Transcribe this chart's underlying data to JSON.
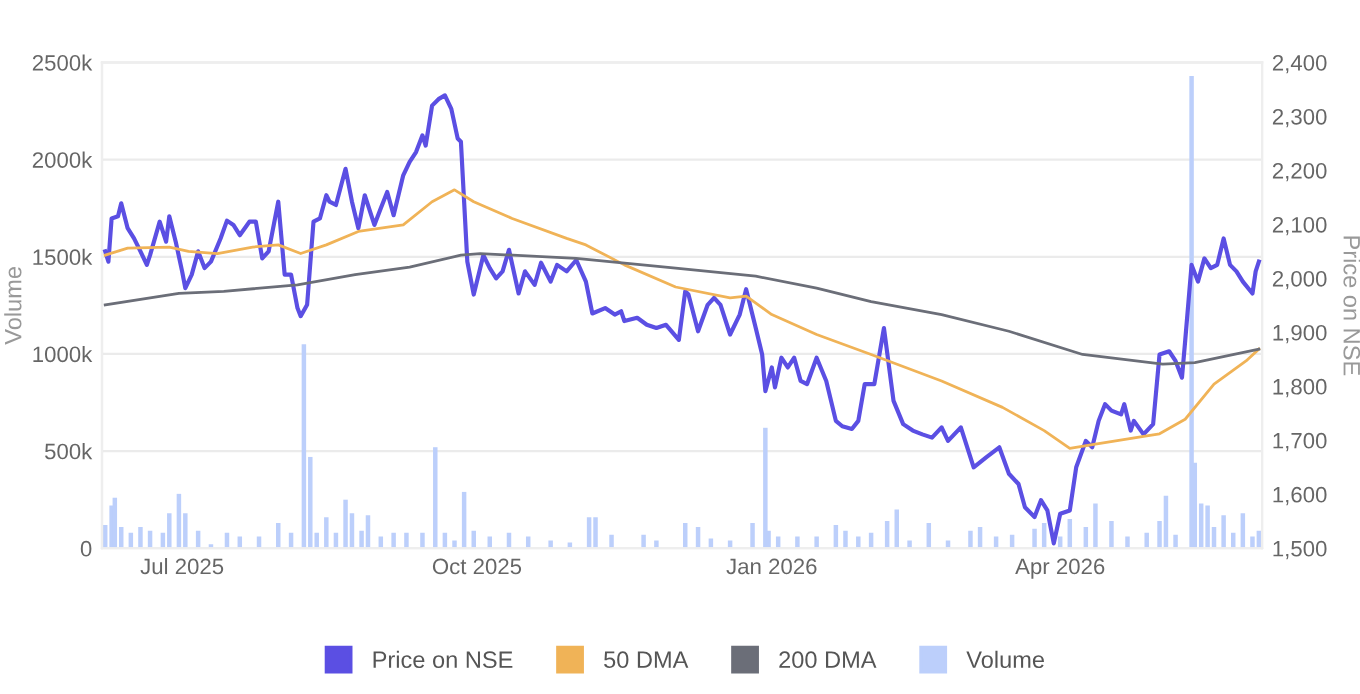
{
  "chart_data": {
    "type": "line",
    "ylabel": "Volume",
    "y2label": "Price on NSE",
    "legend": "bottom",
    "grid": "y",
    "marker": "none",
    "line_style": "solid",
    "xlim": [
      "2025-06-06",
      "2026-06-03"
    ],
    "xticks": [
      {
        "value": "2025-07-01",
        "label": "Jul 2025"
      },
      {
        "value": "2025-10-01",
        "label": "Oct 2025"
      },
      {
        "value": "2026-01-01",
        "label": "Jan 2026"
      },
      {
        "value": "2026-04-01",
        "label": "Apr 2026"
      }
    ],
    "ylim": [
      0,
      2500000
    ],
    "yticks": [
      {
        "value": 0,
        "label": "0"
      },
      {
        "value": 500000,
        "label": "500k"
      },
      {
        "value": 1000000,
        "label": "1000k"
      },
      {
        "value": 1500000,
        "label": "1500k"
      },
      {
        "value": 2000000,
        "label": "2000k"
      },
      {
        "value": 2500000,
        "label": "2500k"
      }
    ],
    "y2lim": [
      1500,
      2400
    ],
    "y2ticks": [
      {
        "value": 1500,
        "label": "1,500"
      },
      {
        "value": 1600,
        "label": "1,600"
      },
      {
        "value": 1700,
        "label": "1,700"
      },
      {
        "value": 1800,
        "label": "1,800"
      },
      {
        "value": 1900,
        "label": "1,900"
      },
      {
        "value": 2000,
        "label": "2,000"
      },
      {
        "value": 2100,
        "label": "2,100"
      },
      {
        "value": 2200,
        "label": "2,200"
      },
      {
        "value": 2300,
        "label": "2,300"
      },
      {
        "value": 2400,
        "label": "2,400"
      }
    ],
    "series": [
      {
        "name": "Price on NSE",
        "axis": "y2",
        "color": "#5b4fe3",
        "x": [
          "2025-06-07",
          "2025-06-08",
          "2025-06-09",
          "2025-06-11",
          "2025-06-12",
          "2025-06-14",
          "2025-06-16",
          "2025-06-18",
          "2025-06-20",
          "2025-06-21",
          "2025-06-24",
          "2025-06-26",
          "2025-06-27",
          "2025-06-29",
          "2025-07-01",
          "2025-07-02",
          "2025-07-04",
          "2025-07-06",
          "2025-07-08",
          "2025-07-10",
          "2025-07-13",
          "2025-07-15",
          "2025-07-17",
          "2025-07-19",
          "2025-07-22",
          "2025-07-24",
          "2025-07-26",
          "2025-07-28",
          "2025-07-31",
          "2025-08-02",
          "2025-08-04",
          "2025-08-06",
          "2025-08-07",
          "2025-08-09",
          "2025-08-11",
          "2025-08-13",
          "2025-08-15",
          "2025-08-16",
          "2025-08-18",
          "2025-08-21",
          "2025-08-23",
          "2025-08-25",
          "2025-08-27",
          "2025-08-30",
          "2025-09-01",
          "2025-09-03",
          "2025-09-05",
          "2025-09-08",
          "2025-09-10",
          "2025-09-12",
          "2025-09-14",
          "2025-09-15",
          "2025-09-17",
          "2025-09-19",
          "2025-09-21",
          "2025-09-23",
          "2025-09-25",
          "2025-09-26",
          "2025-09-28",
          "2025-09-30",
          "2025-10-03",
          "2025-10-05",
          "2025-10-07",
          "2025-10-09",
          "2025-10-11",
          "2025-10-14",
          "2025-10-16",
          "2025-10-19",
          "2025-10-21",
          "2025-10-24",
          "2025-10-26",
          "2025-10-29",
          "2025-11-01",
          "2025-11-04",
          "2025-11-06",
          "2025-11-10",
          "2025-11-13",
          "2025-11-15",
          "2025-11-16",
          "2025-11-20",
          "2025-11-23",
          "2025-11-26",
          "2025-11-29",
          "2025-12-03",
          "2025-12-05",
          "2025-12-06",
          "2025-12-09",
          "2025-12-12",
          "2025-12-14",
          "2025-12-16",
          "2025-12-19",
          "2025-12-22",
          "2025-12-24",
          "2025-12-27",
          "2025-12-29",
          "2025-12-30",
          "2026-01-01",
          "2026-01-02",
          "2026-01-04",
          "2026-01-06",
          "2026-01-08",
          "2026-01-10",
          "2026-01-12",
          "2026-01-15",
          "2026-01-18",
          "2026-01-21",
          "2026-01-23",
          "2026-01-26",
          "2026-01-28",
          "2026-01-30",
          "2026-02-02",
          "2026-02-05",
          "2026-02-08",
          "2026-02-11",
          "2026-02-14",
          "2026-02-17",
          "2026-02-20",
          "2026-02-23",
          "2026-02-25",
          "2026-03-01",
          "2026-03-05",
          "2026-03-09",
          "2026-03-13",
          "2026-03-16",
          "2026-03-19",
          "2026-03-21",
          "2026-03-24",
          "2026-03-26",
          "2026-03-28",
          "2026-03-30",
          "2026-04-01",
          "2026-04-04",
          "2026-04-06",
          "2026-04-09",
          "2026-04-11",
          "2026-04-13",
          "2026-04-15",
          "2026-04-17",
          "2026-04-20",
          "2026-04-21",
          "2026-04-23",
          "2026-04-24",
          "2026-04-27",
          "2026-04-30",
          "2026-05-02",
          "2026-05-05",
          "2026-05-07",
          "2026-05-09",
          "2026-05-10",
          "2026-05-12",
          "2026-05-14",
          "2026-05-16",
          "2026-05-18",
          "2026-05-20",
          "2026-05-22",
          "2026-05-24",
          "2026-05-26",
          "2026-05-28",
          "2026-05-31",
          "2026-06-01",
          "2026-06-02"
        ],
        "values": [
          2050,
          2031,
          2111,
          2115,
          2139,
          2093,
          2074,
          2050,
          2025,
          2043,
          2105,
          2068,
          2115,
          2068,
          2013,
          1982,
          2007,
          2050,
          2019,
          2031,
          2074,
          2107,
          2099,
          2080,
          2105,
          2105,
          2037,
          2050,
          2142,
          2007,
          2007,
          1945,
          1930,
          1951,
          2105,
          2111,
          2154,
          2142,
          2136,
          2203,
          2142,
          2093,
          2154,
          2099,
          2130,
          2160,
          2117,
          2191,
          2216,
          2234,
          2265,
          2246,
          2320,
          2332,
          2339,
          2314,
          2259,
          2253,
          2031,
          1970,
          2043,
          2019,
          2000,
          2013,
          2053,
          1972,
          2013,
          1988,
          2029,
          1994,
          2025,
          2013,
          2034,
          1994,
          1935,
          1945,
          1933,
          1939,
          1921,
          1927,
          1914,
          1908,
          1914,
          1886,
          1976,
          1970,
          1902,
          1951,
          1964,
          1951,
          1896,
          1933,
          1980,
          1908,
          1859,
          1791,
          1835,
          1798,
          1853,
          1835,
          1853,
          1810,
          1804,
          1853,
          1810,
          1736,
          1726,
          1721,
          1736,
          1804,
          1804,
          1908,
          1773,
          1730,
          1718,
          1711,
          1705,
          1724,
          1699,
          1724,
          1650,
          1669,
          1687,
          1638,
          1619,
          1576,
          1558,
          1589,
          1570,
          1509,
          1564,
          1570,
          1650,
          1699,
          1687,
          1736,
          1767,
          1755,
          1748,
          1767,
          1718,
          1736,
          1711,
          1730,
          1859,
          1865,
          1847,
          1816,
          1884,
          2025,
          1994,
          2037,
          2019,
          2025,
          2074,
          2025,
          2013,
          1994,
          1972,
          2013,
          2031
        ]
      },
      {
        "name": "50 DMA",
        "axis": "y2",
        "color": "#f0b357",
        "x": [
          "2025-06-07",
          "2025-06-14",
          "2025-06-27",
          "2025-07-03",
          "2025-07-12",
          "2025-07-23",
          "2025-07-31",
          "2025-08-07",
          "2025-08-15",
          "2025-08-25",
          "2025-09-08",
          "2025-09-17",
          "2025-09-24",
          "2025-09-30",
          "2025-10-12",
          "2025-10-29",
          "2025-11-04",
          "2025-11-16",
          "2025-12-02",
          "2025-12-19",
          "2025-12-24",
          "2026-01-01",
          "2026-01-15",
          "2026-02-01",
          "2026-02-23",
          "2026-03-14",
          "2026-03-27",
          "2026-04-04",
          "2026-04-12",
          "2026-04-29",
          "2026-05-02",
          "2026-05-10",
          "2026-05-19",
          "2026-05-29",
          "2026-06-02"
        ],
        "values": [
          2043,
          2056,
          2058,
          2050,
          2046,
          2058,
          2062,
          2046,
          2062,
          2087,
          2099,
          2142,
          2164,
          2142,
          2111,
          2074,
          2062,
          2025,
          1984,
          1964,
          1967,
          1933,
          1896,
          1859,
          1810,
          1761,
          1718,
          1685,
          1693,
          1709,
          1712,
          1739,
          1804,
          1847,
          1869
        ]
      },
      {
        "name": "200 DMA",
        "axis": "y2",
        "color": "#6b6e78",
        "x": [
          "2025-06-07",
          "2025-06-30",
          "2025-07-14",
          "2025-08-06",
          "2025-08-24",
          "2025-09-10",
          "2025-09-26",
          "2025-10-02",
          "2025-11-01",
          "2025-12-02",
          "2025-12-27",
          "2026-01-15",
          "2026-02-01",
          "2026-02-23",
          "2026-03-16",
          "2026-04-08",
          "2026-05-03",
          "2026-05-13",
          "2026-06-02"
        ],
        "values": [
          1951,
          1972,
          1976,
          1988,
          2007,
          2021,
          2043,
          2046,
          2037,
          2019,
          2004,
          1982,
          1957,
          1933,
          1902,
          1859,
          1841,
          1844,
          1869
        ]
      },
      {
        "name": "Volume",
        "type": "bar",
        "axis": "y",
        "color": "#bccffb",
        "x": [
          "2025-06-07",
          "2025-06-09",
          "2025-06-10",
          "2025-06-12",
          "2025-06-15",
          "2025-06-18",
          "2025-06-21",
          "2025-06-25",
          "2025-06-27",
          "2025-06-30",
          "2025-07-02",
          "2025-07-06",
          "2025-07-10",
          "2025-07-15",
          "2025-07-19",
          "2025-07-25",
          "2025-07-31",
          "2025-08-04",
          "2025-08-08",
          "2025-08-10",
          "2025-08-12",
          "2025-08-15",
          "2025-08-18",
          "2025-08-21",
          "2025-08-23",
          "2025-08-26",
          "2025-08-28",
          "2025-09-01",
          "2025-09-05",
          "2025-09-09",
          "2025-09-14",
          "2025-09-18",
          "2025-09-21",
          "2025-09-24",
          "2025-09-27",
          "2025-09-30",
          "2025-10-05",
          "2025-10-11",
          "2025-10-17",
          "2025-10-24",
          "2025-10-30",
          "2025-11-05",
          "2025-11-07",
          "2025-11-12",
          "2025-11-22",
          "2025-11-26",
          "2025-12-05",
          "2025-12-09",
          "2025-12-13",
          "2025-12-19",
          "2025-12-26",
          "2025-12-30",
          "2025-12-31",
          "2026-01-03",
          "2026-01-09",
          "2026-01-15",
          "2026-01-21",
          "2026-01-24",
          "2026-01-28",
          "2026-02-01",
          "2026-02-06",
          "2026-02-09",
          "2026-02-13",
          "2026-02-19",
          "2026-02-25",
          "2026-03-04",
          "2026-03-07",
          "2026-03-12",
          "2026-03-17",
          "2026-03-24",
          "2026-03-27",
          "2026-04-01",
          "2026-04-04",
          "2026-04-09",
          "2026-04-12",
          "2026-04-17",
          "2026-04-22",
          "2026-04-28",
          "2026-05-02",
          "2026-05-04",
          "2026-05-07",
          "2026-05-12",
          "2026-05-13",
          "2026-05-15",
          "2026-05-17",
          "2026-05-19",
          "2026-05-22",
          "2026-05-25",
          "2026-05-28",
          "2026-05-31",
          "2026-06-02"
        ],
        "values": [
          120000,
          220000,
          260000,
          110000,
          80000,
          110000,
          90000,
          80000,
          180000,
          280000,
          180000,
          90000,
          20000,
          80000,
          60000,
          60000,
          130000,
          80000,
          1050000,
          470000,
          80000,
          160000,
          80000,
          250000,
          180000,
          90000,
          170000,
          60000,
          80000,
          80000,
          80000,
          520000,
          80000,
          40000,
          290000,
          90000,
          60000,
          80000,
          60000,
          40000,
          30000,
          160000,
          160000,
          70000,
          70000,
          40000,
          130000,
          110000,
          50000,
          40000,
          130000,
          620000,
          90000,
          60000,
          60000,
          60000,
          120000,
          90000,
          60000,
          80000,
          140000,
          200000,
          40000,
          130000,
          40000,
          90000,
          110000,
          60000,
          70000,
          100000,
          130000,
          60000,
          150000,
          110000,
          230000,
          140000,
          60000,
          80000,
          140000,
          270000,
          70000,
          2430000,
          440000,
          230000,
          220000,
          110000,
          170000,
          80000,
          180000,
          60000,
          90000
        ]
      }
    ]
  }
}
